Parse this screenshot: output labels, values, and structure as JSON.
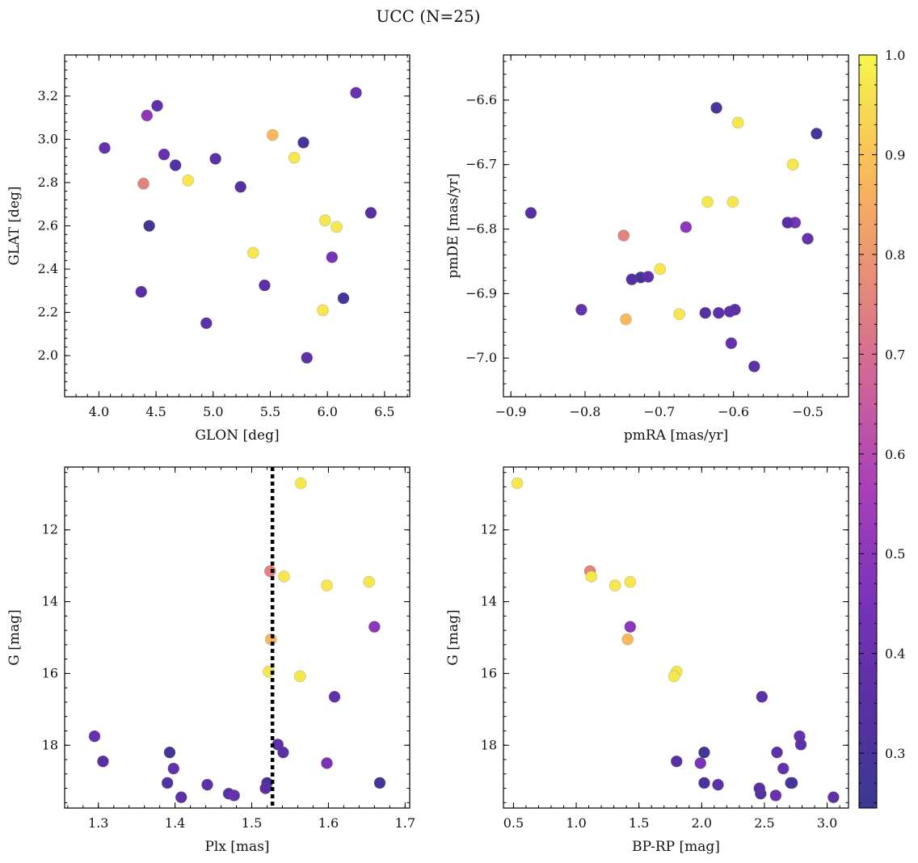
{
  "chart_data": {
    "type": "scatter",
    "title": "UCC (N=25)",
    "colorbar": {
      "range": [
        0.245,
        1.0
      ],
      "ticks": [
        0.3,
        0.4,
        0.5,
        0.6,
        0.7,
        0.8,
        0.9,
        1.0
      ],
      "colormap": "plasma-like"
    },
    "stars": [
      {
        "glon": 4.05,
        "glat": 2.96,
        "pmra": -0.805,
        "pmde": -6.925,
        "plx": 1.295,
        "g": 17.75,
        "bprp": 2.78,
        "p": 0.4
      },
      {
        "glon": 4.37,
        "glat": 2.295,
        "pmra": -0.873,
        "pmde": -6.775,
        "plx": 1.306,
        "g": 18.45,
        "bprp": 1.8,
        "p": 0.35
      },
      {
        "glon": 4.39,
        "glat": 2.795,
        "pmra": -0.748,
        "pmde": -6.81,
        "plx": 1.524,
        "g": 13.15,
        "bprp": 1.11,
        "p": 0.75
      },
      {
        "glon": 4.42,
        "glat": 3.11,
        "pmra": -0.664,
        "pmde": -6.797,
        "plx": 1.66,
        "g": 14.7,
        "bprp": 1.43,
        "p": 0.5
      },
      {
        "glon": 4.44,
        "glat": 2.6,
        "pmra": -0.725,
        "pmde": -6.875,
        "plx": 1.393,
        "g": 18.2,
        "bprp": 2.02,
        "p": 0.28
      },
      {
        "glon": 4.51,
        "glat": 3.155,
        "pmra": -0.62,
        "pmde": -6.93,
        "plx": 1.534,
        "g": 17.98,
        "bprp": 2.79,
        "p": 0.37
      },
      {
        "glon": 4.57,
        "glat": 2.93,
        "pmra": -0.603,
        "pmde": -6.977,
        "plx": 1.398,
        "g": 18.65,
        "bprp": 2.65,
        "p": 0.39
      },
      {
        "glon": 4.67,
        "glat": 2.88,
        "pmra": -0.638,
        "pmde": -6.93,
        "plx": 1.39,
        "g": 19.05,
        "bprp": 2.72,
        "p": 0.33
      },
      {
        "glon": 4.78,
        "glat": 2.81,
        "pmra": -0.635,
        "pmde": -6.758,
        "plx": 1.522,
        "g": 15.95,
        "bprp": 1.8,
        "p": 0.97
      },
      {
        "glon": 4.94,
        "glat": 2.15,
        "pmra": -0.715,
        "pmde": -6.874,
        "plx": 1.408,
        "g": 19.45,
        "bprp": 3.05,
        "p": 0.37
      },
      {
        "glon": 5.02,
        "glat": 2.91,
        "pmra": -0.598,
        "pmde": -6.925,
        "plx": 1.442,
        "g": 19.1,
        "bprp": 2.13,
        "p": 0.36
      },
      {
        "glon": 5.24,
        "glat": 2.78,
        "pmra": -0.737,
        "pmde": -6.878,
        "plx": 1.47,
        "g": 19.35,
        "bprp": 2.47,
        "p": 0.34
      },
      {
        "glon": 5.35,
        "glat": 2.475,
        "pmra": -0.673,
        "pmde": -6.932,
        "plx": 1.542,
        "g": 13.3,
        "bprp": 1.12,
        "p": 0.97
      },
      {
        "glon": 5.45,
        "glat": 2.325,
        "pmra": -0.572,
        "pmde": -7.013,
        "plx": 1.541,
        "g": 18.2,
        "bprp": 2.6,
        "p": 0.36
      },
      {
        "glon": 5.52,
        "glat": 3.02,
        "pmra": -0.745,
        "pmde": -6.94,
        "plx": 1.525,
        "g": 15.05,
        "bprp": 1.41,
        "p": 0.88
      },
      {
        "glon": 5.71,
        "glat": 2.915,
        "pmra": -0.699,
        "pmde": -6.862,
        "plx": 1.563,
        "g": 16.08,
        "bprp": 1.78,
        "p": 0.97
      },
      {
        "glon": 5.79,
        "glat": 2.985,
        "pmra": -0.623,
        "pmde": -6.612,
        "plx": 1.52,
        "g": 19.05,
        "bprp": 2.02,
        "p": 0.3
      },
      {
        "glon": 5.82,
        "glat": 1.99,
        "pmra": -0.605,
        "pmde": -6.928,
        "plx": 1.608,
        "g": 16.65,
        "bprp": 2.48,
        "p": 0.37
      },
      {
        "glon": 5.96,
        "glat": 2.21,
        "pmra": -0.594,
        "pmde": -6.635,
        "plx": 1.653,
        "g": 13.45,
        "bprp": 1.43,
        "p": 0.97
      },
      {
        "glon": 5.98,
        "glat": 2.625,
        "pmra": -0.601,
        "pmde": -6.758,
        "plx": 1.598,
        "g": 13.55,
        "bprp": 1.31,
        "p": 0.97
      },
      {
        "glon": 6.04,
        "glat": 2.455,
        "pmra": -0.517,
        "pmde": -6.79,
        "plx": 1.598,
        "g": 18.5,
        "bprp": 1.99,
        "p": 0.45
      },
      {
        "glon": 6.08,
        "glat": 2.595,
        "pmra": -0.52,
        "pmde": -6.7,
        "plx": 1.564,
        "g": 10.7,
        "bprp": 0.53,
        "p": 0.97
      },
      {
        "glon": 6.14,
        "glat": 2.265,
        "pmra": -0.488,
        "pmde": -6.652,
        "plx": 1.667,
        "g": 19.05,
        "bprp": 2.71,
        "p": 0.29
      },
      {
        "glon": 6.25,
        "glat": 3.215,
        "pmra": -0.5,
        "pmde": -6.815,
        "plx": 1.477,
        "g": 19.4,
        "bprp": 2.59,
        "p": 0.4
      },
      {
        "glon": 6.38,
        "glat": 2.66,
        "pmra": -0.527,
        "pmde": -6.79,
        "plx": 1.518,
        "g": 19.2,
        "bprp": 2.46,
        "p": 0.35
      }
    ],
    "panels": [
      {
        "id": "glon-glat",
        "x": "glon",
        "y": "glat",
        "xlabel": "GLON [deg]",
        "ylabel": "GLAT [deg]",
        "xlim": [
          3.7,
          6.72
        ],
        "ylim": [
          1.81,
          3.39
        ],
        "yinvert": false,
        "xticks": [
          "4.0",
          "4.5",
          "5.0",
          "5.5",
          "6.0",
          "6.5"
        ],
        "yticks": [
          "2.0",
          "2.2",
          "2.4",
          "2.6",
          "2.8",
          "3.0",
          "3.2"
        ]
      },
      {
        "id": "pm",
        "x": "pmra",
        "y": "pmde",
        "xlabel": "pmRA [mas/yr]",
        "ylabel": "pmDE [mas/yr]",
        "xlim": [
          -0.91,
          -0.445
        ],
        "ylim": [
          -7.06,
          -6.53
        ],
        "yinvert": false,
        "xticks": [
          "−0.9",
          "−0.8",
          "−0.7",
          "−0.6",
          "−0.5"
        ],
        "yticks": [
          "−7.0",
          "−6.9",
          "−6.8",
          "−6.7",
          "−6.6"
        ]
      },
      {
        "id": "plx-g",
        "x": "plx",
        "y": "g",
        "xlabel": "Plx [mas]",
        "ylabel": "G [mag]",
        "xlim": [
          1.256,
          1.706
        ],
        "ylim": [
          10.25,
          19.75
        ],
        "yinvert": true,
        "xticks": [
          "1.3",
          "1.4",
          "1.5",
          "1.6",
          "1.7"
        ],
        "yticks": [
          "12",
          "14",
          "16",
          "18"
        ],
        "vline": 1.527
      },
      {
        "id": "cmd",
        "x": "bprp",
        "y": "g",
        "xlabel": "BP-RP [mag]",
        "ylabel": "G [mag]",
        "xlim": [
          0.42,
          3.17
        ],
        "ylim": [
          10.25,
          19.75
        ],
        "yinvert": true,
        "xticks": [
          "0.5",
          "1.0",
          "1.5",
          "2.0",
          "2.5",
          "3.0"
        ],
        "yticks": [
          "12",
          "14",
          "16",
          "18"
        ]
      }
    ]
  }
}
